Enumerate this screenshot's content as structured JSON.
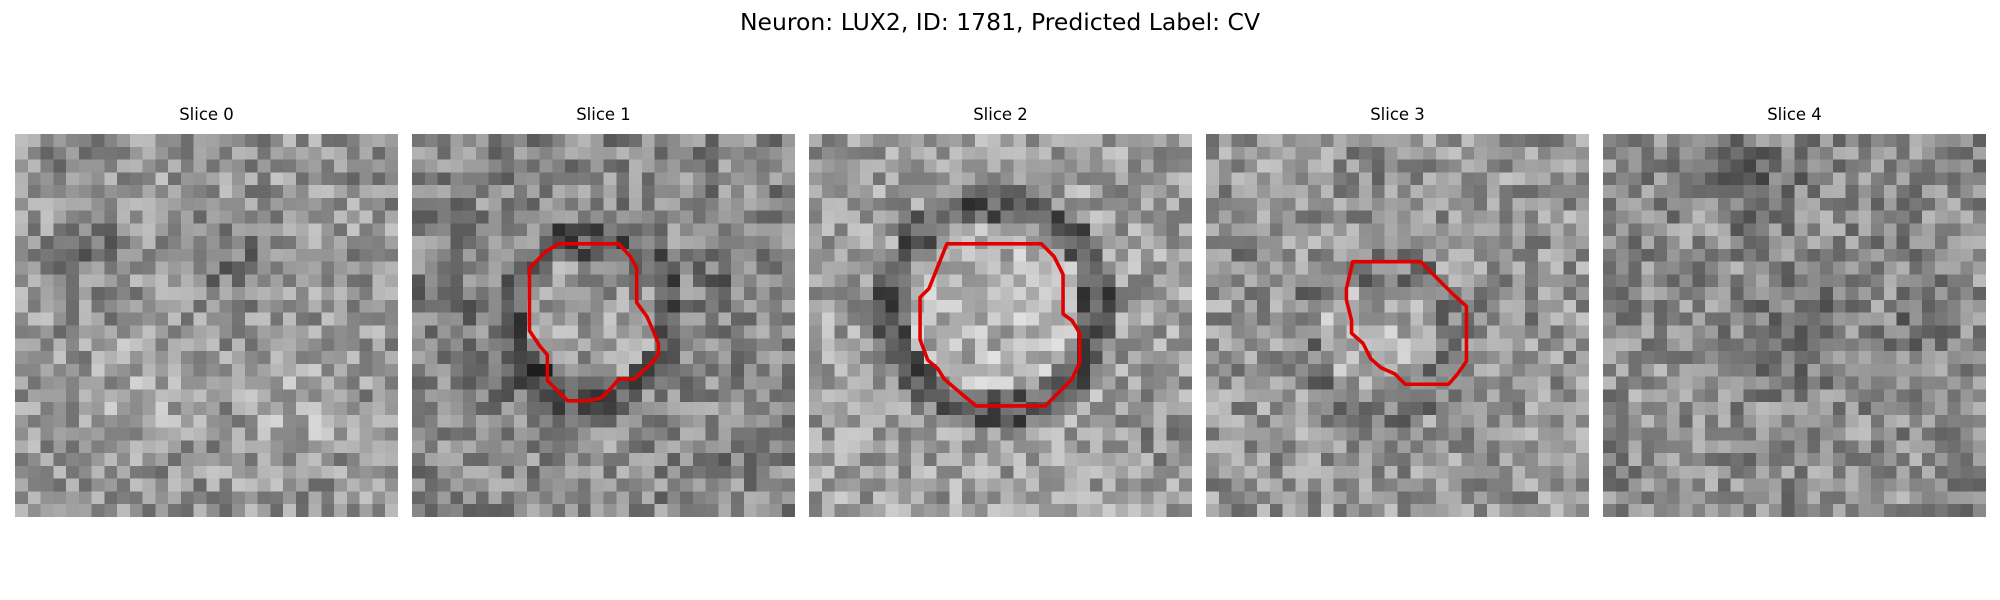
{
  "figure": {
    "title": "Neuron: LUX2, ID: 1781, Predicted Label: CV",
    "contour_color": "#e00000",
    "panels": [
      {
        "title": "Slice 0",
        "has_contour": false
      },
      {
        "title": "Slice 1",
        "has_contour": true
      },
      {
        "title": "Slice 2",
        "has_contour": true
      },
      {
        "title": "Slice 3",
        "has_contour": true
      },
      {
        "title": "Slice 4",
        "has_contour": false
      }
    ]
  }
}
